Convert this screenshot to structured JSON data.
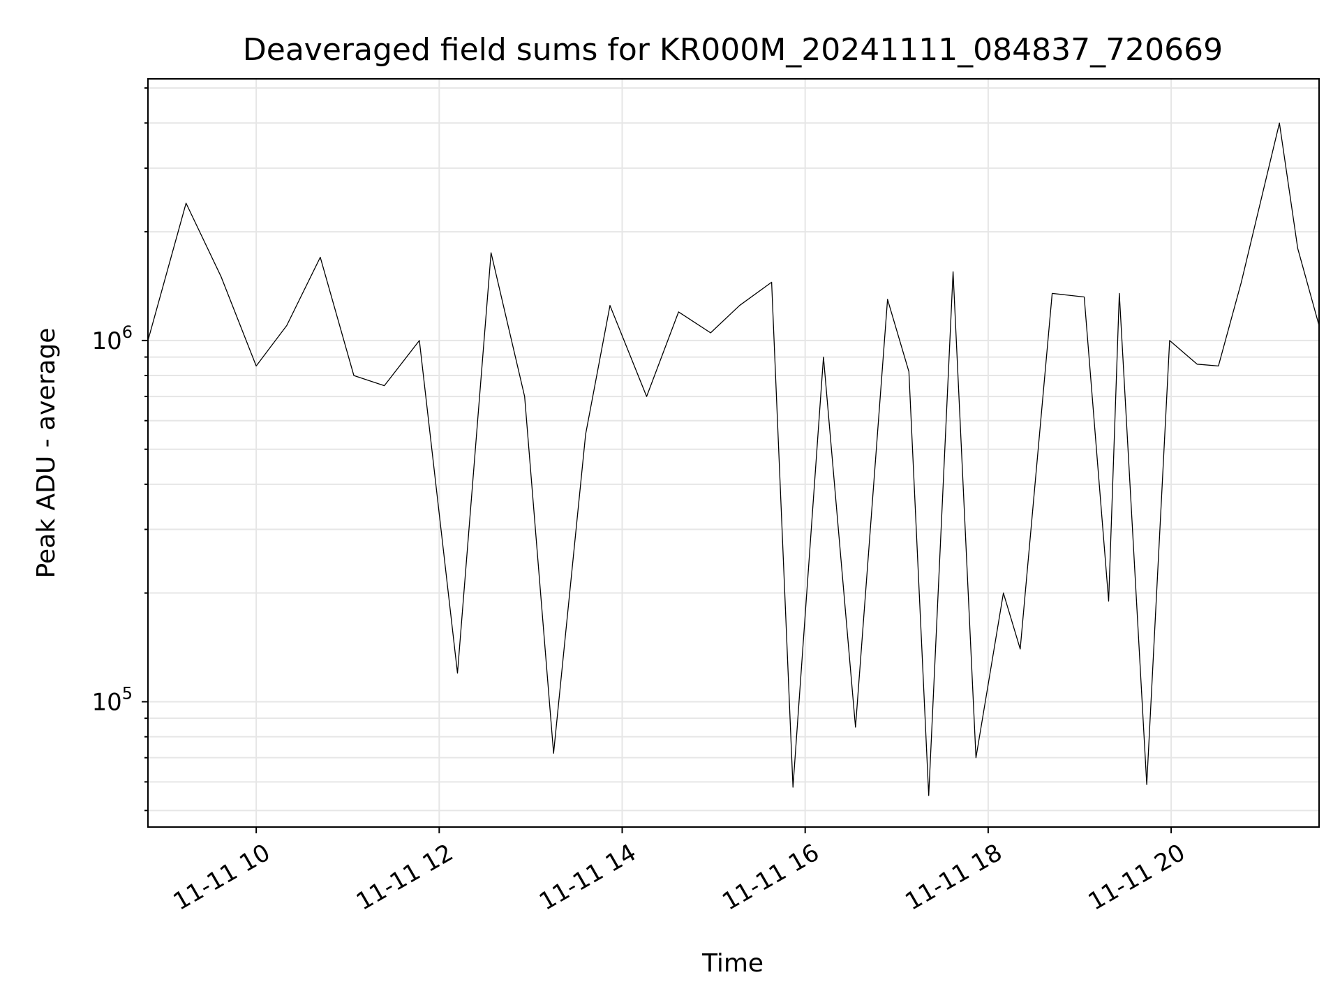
{
  "chart_data": {
    "type": "line",
    "title": "Deaveraged field sums for KR000M_20241111_084837_720669",
    "xlabel": "Time",
    "ylabel": "Peak ADU - average",
    "y_scale": "log",
    "ylim": [
      45000,
      5300000
    ],
    "xlim": [
      "11-11 08:49",
      "11-11 21:37"
    ],
    "x_ticks": [
      {
        "time": "11-11 10:00",
        "label": "11-11 10"
      },
      {
        "time": "11-11 12:00",
        "label": "11-11 12"
      },
      {
        "time": "11-11 14:00",
        "label": "11-11 14"
      },
      {
        "time": "11-11 16:00",
        "label": "11-11 16"
      },
      {
        "time": "11-11 18:00",
        "label": "11-11 18"
      },
      {
        "time": "11-11 20:00",
        "label": "11-11 20"
      }
    ],
    "y_ticks": [
      {
        "value": 100000,
        "base": "10",
        "exp": "5"
      },
      {
        "value": 1000000,
        "base": "10",
        "exp": "6"
      }
    ],
    "grid": true,
    "colors": {
      "line": "#000000",
      "grid": "#e6e6e6",
      "axes": "#000000"
    },
    "series": [
      {
        "x": [
          "11-11 08:49",
          "11-11 09:14",
          "11-11 09:37",
          "11-11 10:00",
          "11-11 10:20",
          "11-11 10:42",
          "11-11 11:04",
          "11-11 11:24",
          "11-11 11:47",
          "11-11 12:12",
          "11-11 12:34",
          "11-11 12:56",
          "11-11 13:15",
          "11-11 13:36",
          "11-11 13:52",
          "11-11 14:16",
          "11-11 14:37",
          "11-11 14:58",
          "11-11 15:17",
          "11-11 15:38",
          "11-11 15:52",
          "11-11 16:12",
          "11-11 16:33",
          "11-11 16:54",
          "11-11 17:08",
          "11-11 17:21",
          "11-11 17:37",
          "11-11 17:52",
          "11-11 18:10",
          "11-11 18:21",
          "11-11 18:42",
          "11-11 19:03",
          "11-11 19:19",
          "11-11 19:26",
          "11-11 19:44",
          "11-11 19:59",
          "11-11 20:17",
          "11-11 20:31",
          "11-11 20:46",
          "11-11 21:11",
          "11-11 21:23",
          "11-11 21:37"
        ],
        "y": [
          1000000,
          2400000,
          1500000,
          850000,
          1100000,
          1700000,
          800000,
          750000,
          1000000,
          120000,
          1750000,
          700000,
          72000,
          550000,
          1250000,
          700000,
          1200000,
          1050000,
          1250000,
          1450000,
          58000,
          900000,
          85000,
          1300000,
          820000,
          55000,
          1550000,
          70000,
          200000,
          140000,
          1350000,
          1320000,
          190000,
          1350000,
          59000,
          1000000,
          860000,
          850000,
          1450000,
          4000000,
          1800000,
          1100000
        ]
      }
    ]
  }
}
